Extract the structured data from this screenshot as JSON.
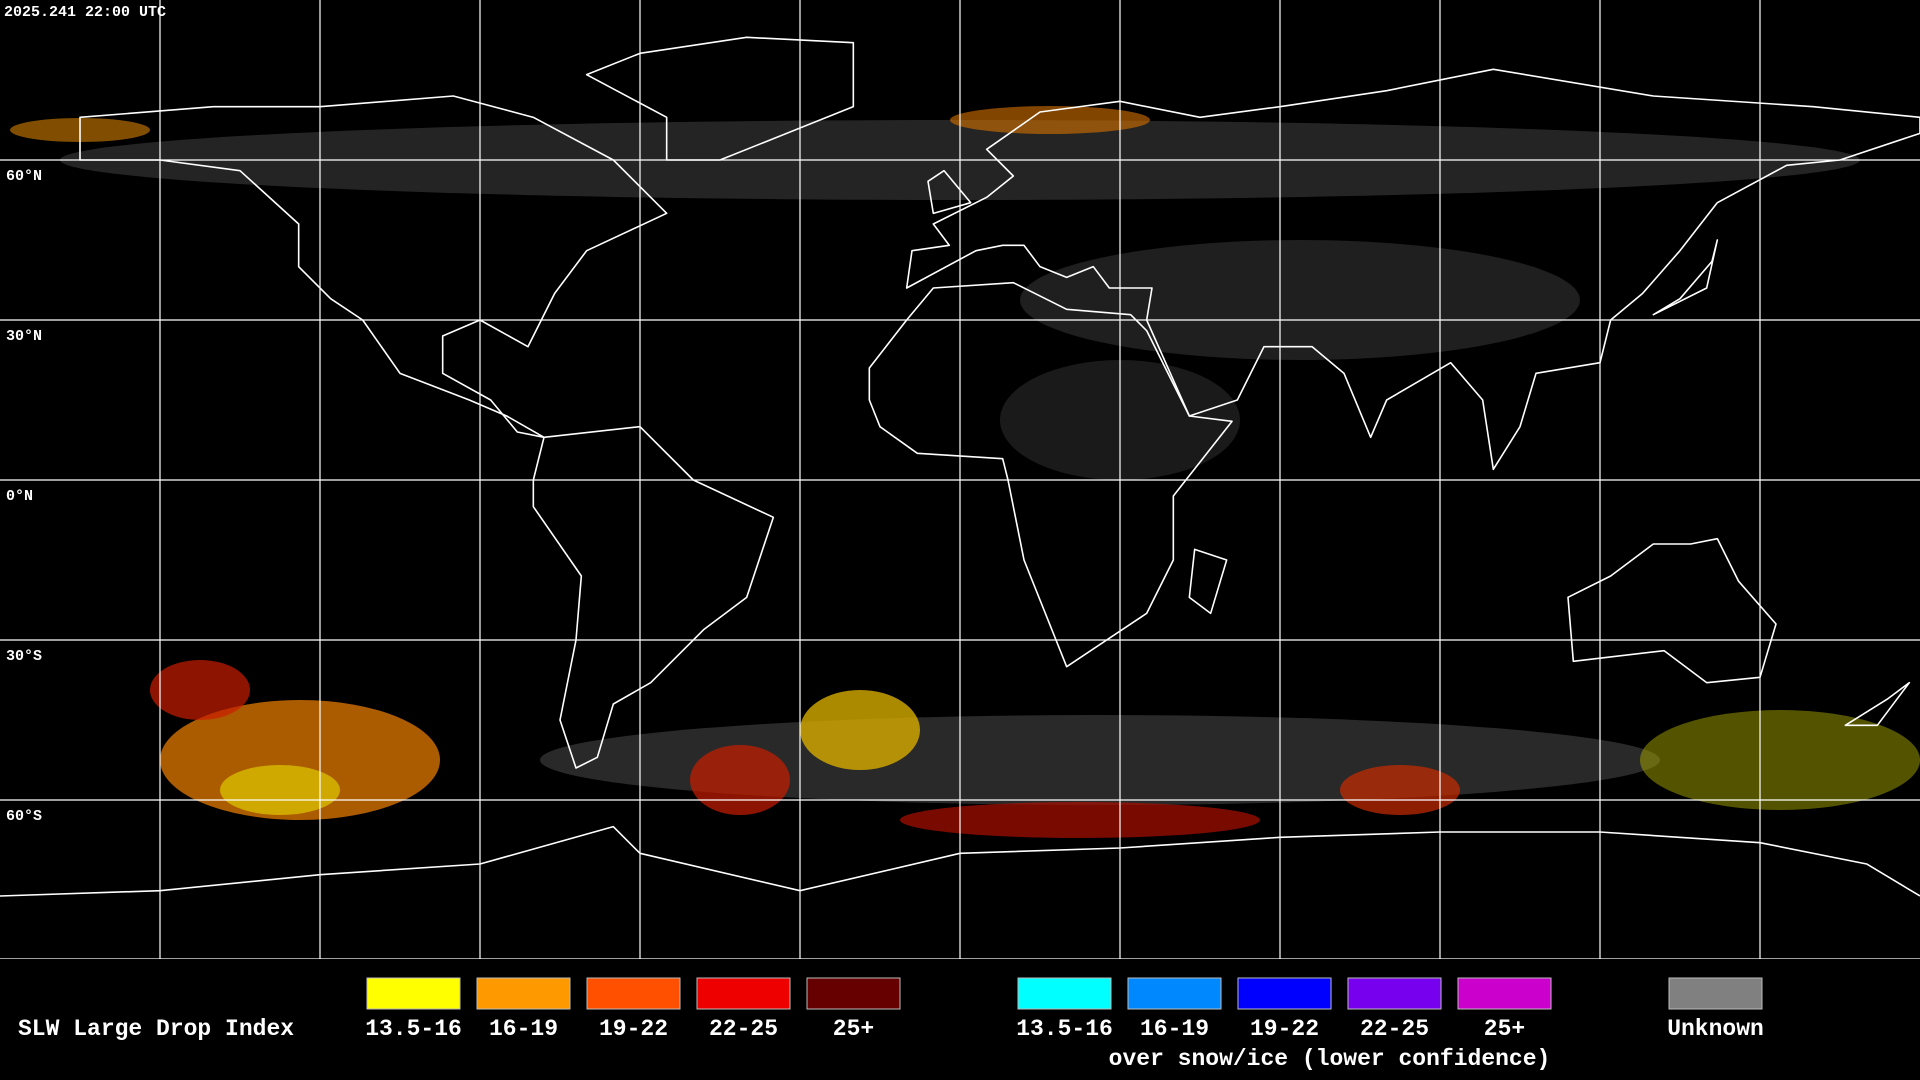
{
  "timestamp": "2025.241 22:00 UTC",
  "latitude_labels": [
    "60°N",
    "30°N",
    "0°N",
    "30°S",
    "60°S"
  ],
  "legend": {
    "title": "SLW Large Drop Index",
    "groups": [
      {
        "items": [
          {
            "label": "13.5-16",
            "color": "#ffff00"
          },
          {
            "label": "16-19",
            "color": "#ff9900"
          },
          {
            "label": "19-22",
            "color": "#ff5000"
          },
          {
            "label": "22-25",
            "color": "#ee0000"
          },
          {
            "label": "25+",
            "color": "#660000"
          }
        ]
      },
      {
        "items": [
          {
            "label": "13.5-16",
            "color": "#00ffff"
          },
          {
            "label": "16-19",
            "color": "#0088ff"
          },
          {
            "label": "19-22",
            "color": "#0000ff"
          },
          {
            "label": "22-25",
            "color": "#7700ee"
          },
          {
            "label": "25+",
            "color": "#cc00cc"
          }
        ],
        "caption": "over snow/ice (lower confidence)"
      }
    ],
    "unknown": {
      "label": "Unknown",
      "color": "#808080"
    }
  }
}
